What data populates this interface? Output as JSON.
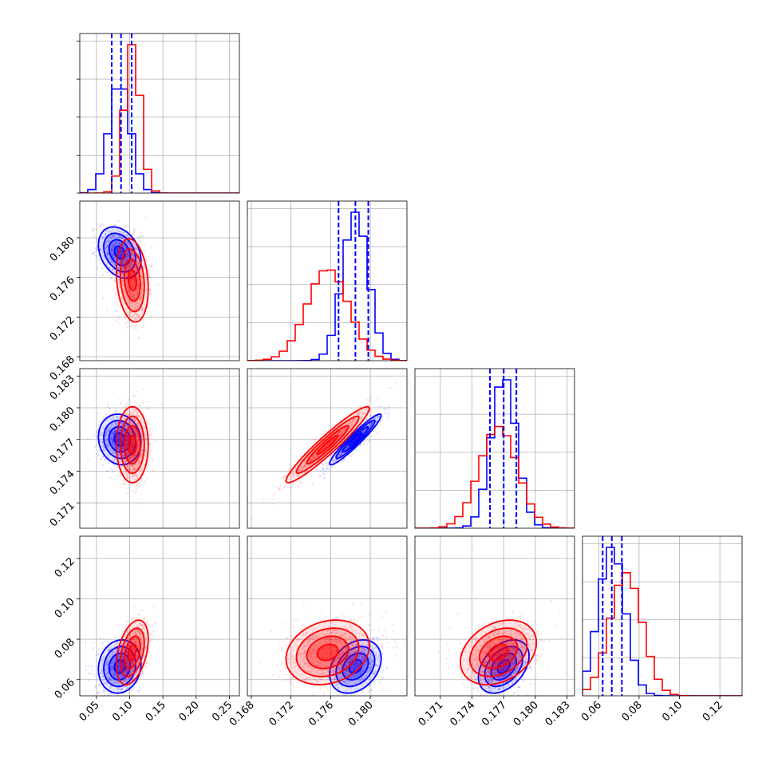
{
  "chart_data": {
    "type": "corner",
    "title": "",
    "parameters": [
      "",
      "",
      "",
      ""
    ],
    "colors": {
      "blue": "#0000ff",
      "red": "#ff0000"
    },
    "series": [
      {
        "color": "#0000ff",
        "mean": [
          0.085,
          0.1785,
          0.177,
          0.0665
        ],
        "std": [
          0.016,
          0.0013,
          0.0012,
          0.0066
        ],
        "corr": {
          "0_1": -0.3,
          "0_2": -0.1,
          "0_3": 0.1,
          "1_2": 0.95,
          "1_3": 0.3,
          "2_3": 0.4
        }
      },
      {
        "color": "#ff0000",
        "mean": [
          0.104,
          0.1757,
          0.1765,
          0.0735
        ],
        "std": [
          0.012,
          0.0021,
          0.0018,
          0.008
        ],
        "corr": {
          "0_1": -0.2,
          "0_2": 0.0,
          "0_3": 0.4,
          "1_2": 0.95,
          "1_3": 0.2,
          "2_3": 0.3
        }
      }
    ],
    "quantile_lines": {
      "color": "#0000ff",
      "style": "dashed",
      "values": [
        [
          0.073,
          0.087,
          0.103
        ],
        [
          0.1768,
          0.1785,
          0.1798
        ],
        [
          0.1757,
          0.177,
          0.1782
        ],
        [
          0.062,
          0.0665,
          0.0715
        ]
      ]
    },
    "ranges": [
      [
        0.025,
        0.265
      ],
      [
        0.1676,
        0.1837
      ],
      [
        0.1686,
        0.1837
      ],
      [
        0.052,
        0.131
      ]
    ],
    "ticks": [
      [
        0.05,
        0.1,
        0.15,
        0.2,
        0.25
      ],
      [
        0.168,
        0.172,
        0.176,
        0.18
      ],
      [
        0.171,
        0.174,
        0.177,
        0.18,
        0.183
      ],
      [
        0.06,
        0.08,
        0.1,
        0.12
      ]
    ],
    "tick_labels": [
      [
        "0.05",
        "0.10",
        "0.15",
        "0.20",
        "0.25"
      ],
      [
        "0.168",
        "0.172",
        "0.176",
        "0.180"
      ],
      [
        "0.171",
        "0.174",
        "0.177",
        "0.180",
        "0.183"
      ],
      [
        "0.06",
        "0.08",
        "0.10",
        "0.12"
      ]
    ],
    "contour_levels": [
      0.5,
      1.0,
      1.5,
      2.0
    ],
    "grid": true,
    "legend": "none"
  }
}
